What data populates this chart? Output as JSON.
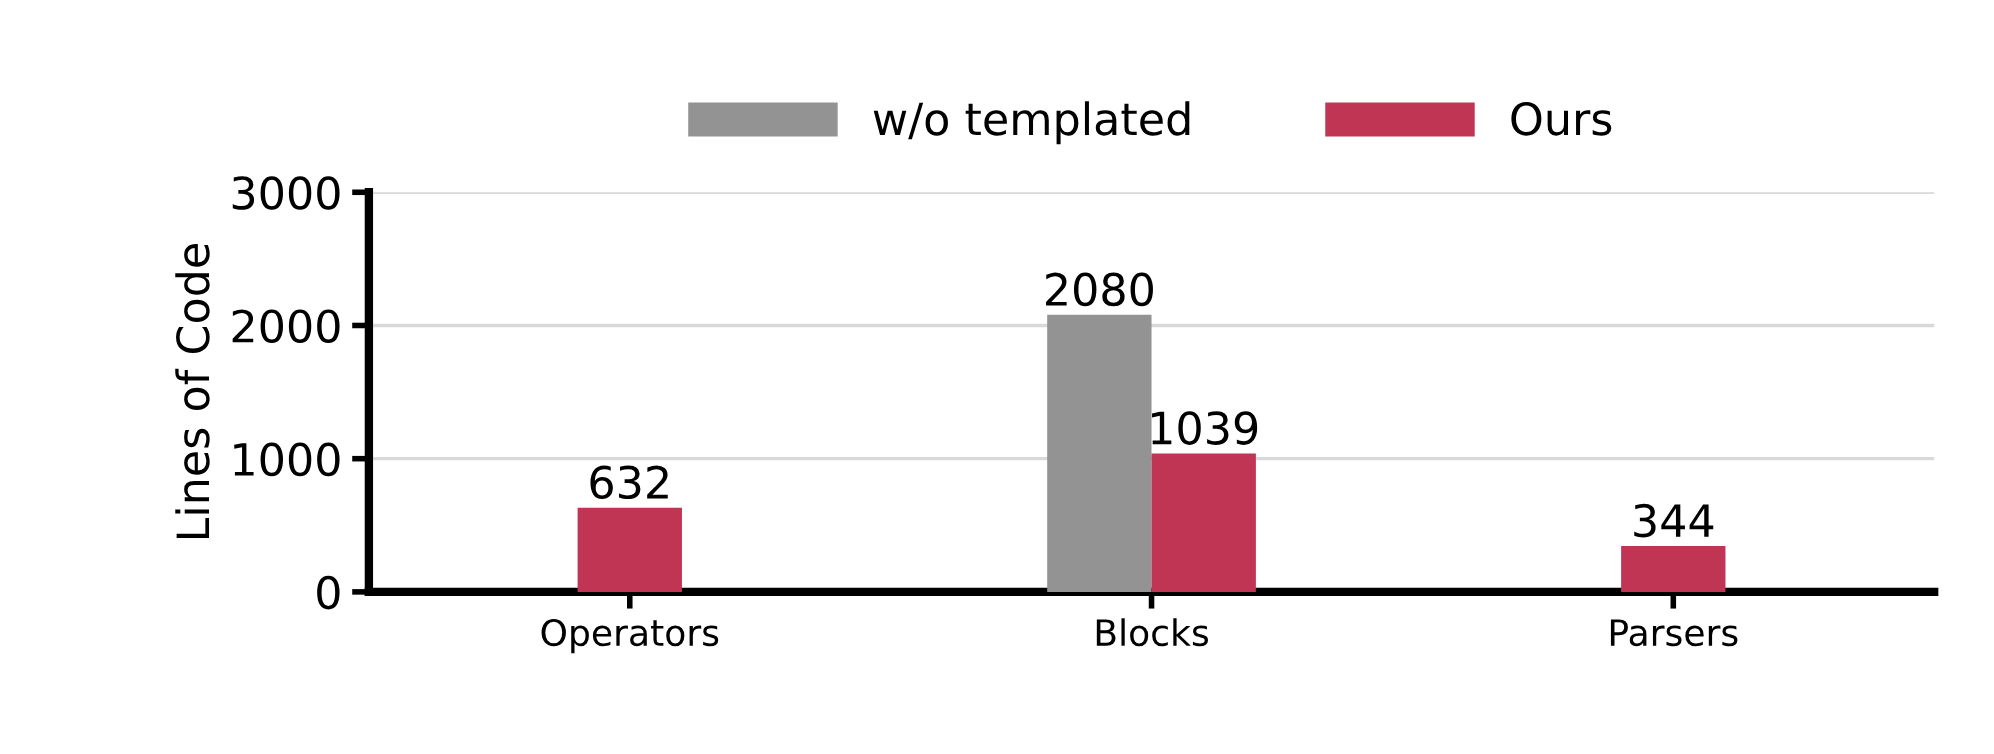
{
  "chart_data": {
    "type": "bar",
    "ylabel": "Lines of Code",
    "categories": [
      "Operators",
      "Blocks",
      "Parsers"
    ],
    "series": [
      {
        "name": "w/o templated",
        "color": "#939393",
        "values": [
          null,
          2080,
          null
        ]
      },
      {
        "name": "Ours",
        "color": "#c03553",
        "values": [
          632,
          1039,
          344
        ]
      }
    ],
    "ylim": [
      0,
      3000
    ],
    "yticks": [
      0,
      1000,
      2000,
      3000
    ],
    "grid": "y",
    "legend": "top",
    "data_labels": true
  }
}
